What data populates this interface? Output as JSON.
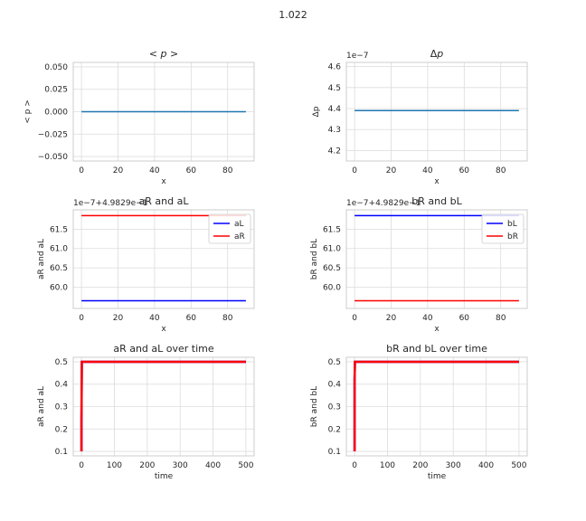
{
  "figure": {
    "suptitle": "1.022"
  },
  "chart_data": [
    {
      "id": "mean-p",
      "type": "line",
      "title": "< p >",
      "title_parts": {
        "left": "<",
        "var": "p",
        "right": ">"
      },
      "xlabel": "x",
      "ylabel": "< p >",
      "xlim": [
        -4.5,
        94.5
      ],
      "ylim": [
        -0.055,
        0.055
      ],
      "xticks": [
        0,
        20,
        40,
        60,
        80
      ],
      "xtick_labels": [
        "0",
        "20",
        "40",
        "60",
        "80"
      ],
      "yticks": [
        -0.05,
        -0.025,
        0,
        0.025,
        0.05
      ],
      "ytick_labels": [
        "−0.050",
        "−0.025",
        "0.000",
        "0.025",
        "0.050"
      ],
      "offset_text": "",
      "grid": true,
      "legend": null,
      "series": [
        {
          "color": "#1f77b4",
          "x": [
            0,
            90
          ],
          "y": [
            0,
            0
          ]
        }
      ]
    },
    {
      "id": "delta-p",
      "type": "line",
      "title": "Δp",
      "title_parts": {
        "left": "Δ",
        "var": "p",
        "right": ""
      },
      "xlabel": "x",
      "ylabel": "Δp",
      "xlim": [
        -4.5,
        94.5
      ],
      "ylim": [
        4.15,
        4.62
      ],
      "xticks": [
        0,
        20,
        40,
        60,
        80
      ],
      "xtick_labels": [
        "0",
        "20",
        "40",
        "60",
        "80"
      ],
      "yticks": [
        4.2,
        4.3,
        4.4,
        4.5,
        4.6
      ],
      "ytick_labels": [
        "4.2",
        "4.3",
        "4.4",
        "4.5",
        "4.6"
      ],
      "offset_text": "1e−7",
      "grid": true,
      "legend": null,
      "series": [
        {
          "color": "#1f77b4",
          "x": [
            0,
            90
          ],
          "y": [
            4.39,
            4.39
          ]
        }
      ]
    },
    {
      "id": "ar-al",
      "type": "line",
      "title": "aR and aL",
      "xlabel": "x",
      "ylabel": "aR and aL",
      "xlim": [
        -4.5,
        94.5
      ],
      "ylim": [
        59.45,
        62.0
      ],
      "xticks": [
        0,
        20,
        40,
        60,
        80
      ],
      "xtick_labels": [
        "0",
        "20",
        "40",
        "60",
        "80"
      ],
      "yticks": [
        60.0,
        60.5,
        61.0,
        61.5
      ],
      "ytick_labels": [
        "60.0",
        "60.5",
        "61.0",
        "61.5"
      ],
      "offset_text": "1e−7+4.9829e−1",
      "grid": true,
      "legend": {
        "loc": "upper right",
        "entries": [
          {
            "name": "aL",
            "color": "#0000ff"
          },
          {
            "name": "aR",
            "color": "#ff0000"
          }
        ]
      },
      "series": [
        {
          "name": "aL",
          "color": "#0000ff",
          "x": [
            0,
            90
          ],
          "y": [
            59.65,
            59.65
          ]
        },
        {
          "name": "aR",
          "color": "#ff0000",
          "x": [
            0,
            90
          ],
          "y": [
            61.85,
            61.85
          ]
        }
      ]
    },
    {
      "id": "br-bl",
      "type": "line",
      "title": "bR and bL",
      "xlabel": "x",
      "ylabel": "bR and bL",
      "xlim": [
        -4.5,
        94.5
      ],
      "ylim": [
        59.45,
        62.0
      ],
      "xticks": [
        0,
        20,
        40,
        60,
        80
      ],
      "xtick_labels": [
        "0",
        "20",
        "40",
        "60",
        "80"
      ],
      "yticks": [
        60.0,
        60.5,
        61.0,
        61.5
      ],
      "ytick_labels": [
        "60.0",
        "60.5",
        "61.0",
        "61.5"
      ],
      "offset_text": "1e−7+4.9829e−1",
      "grid": true,
      "legend": {
        "loc": "upper right",
        "entries": [
          {
            "name": "bL",
            "color": "#0000ff"
          },
          {
            "name": "bR",
            "color": "#ff0000"
          }
        ]
      },
      "series": [
        {
          "name": "bL",
          "color": "#0000ff",
          "x": [
            0,
            90
          ],
          "y": [
            61.85,
            61.85
          ]
        },
        {
          "name": "bR",
          "color": "#ff0000",
          "x": [
            0,
            90
          ],
          "y": [
            59.65,
            59.65
          ]
        }
      ]
    },
    {
      "id": "ar-al-time",
      "type": "line",
      "title": "aR and aL over time",
      "xlabel": "time",
      "ylabel": "aR and aL",
      "xlim": [
        -25,
        525
      ],
      "ylim": [
        0.08,
        0.52
      ],
      "xticks": [
        0,
        100,
        200,
        300,
        400,
        500
      ],
      "xtick_labels": [
        "0",
        "100",
        "200",
        "300",
        "400",
        "500"
      ],
      "yticks": [
        0.1,
        0.2,
        0.3,
        0.4,
        0.5
      ],
      "ytick_labels": [
        "0.1",
        "0.2",
        "0.3",
        "0.4",
        "0.5"
      ],
      "offset_text": "",
      "grid": true,
      "legend": null,
      "series": [
        {
          "color": "#0000ff",
          "x": [
            0,
            0,
            1,
            500
          ],
          "y": [
            0.1,
            0.24,
            0.5,
            0.5
          ]
        },
        {
          "color": "#ff0000",
          "x": [
            0,
            0,
            1,
            500
          ],
          "y": [
            0.1,
            0.24,
            0.5,
            0.5
          ]
        }
      ]
    },
    {
      "id": "br-bl-time",
      "type": "line",
      "title": "bR and bL over time",
      "xlabel": "time",
      "ylabel": "bR and bL",
      "xlim": [
        -25,
        525
      ],
      "ylim": [
        0.08,
        0.52
      ],
      "xticks": [
        0,
        100,
        200,
        300,
        400,
        500
      ],
      "xtick_labels": [
        "0",
        "100",
        "200",
        "300",
        "400",
        "500"
      ],
      "yticks": [
        0.1,
        0.2,
        0.3,
        0.4,
        0.5
      ],
      "ytick_labels": [
        "0.1",
        "0.2",
        "0.3",
        "0.4",
        "0.5"
      ],
      "offset_text": "",
      "grid": true,
      "legend": null,
      "series": [
        {
          "color": "#0000ff",
          "x": [
            0,
            0,
            1,
            500
          ],
          "y": [
            0.1,
            0.42,
            0.5,
            0.5
          ]
        },
        {
          "color": "#ff0000",
          "x": [
            0,
            0,
            1,
            500
          ],
          "y": [
            0.1,
            0.42,
            0.5,
            0.5
          ]
        }
      ]
    }
  ]
}
